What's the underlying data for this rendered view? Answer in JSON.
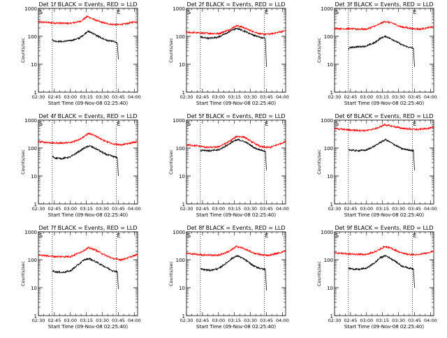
{
  "figure": {
    "start_time_label": "Start Time (09-Nov-08 02:25:40)",
    "ylabel": "Counts/sec",
    "colors": {
      "events": "#000000",
      "lld": "#ff0000"
    },
    "markers": {
      "start": "S",
      "end": "E"
    }
  },
  "chart_data": [
    {
      "type": "line",
      "title": "Det 1f BLACK = Events, RED = LLD",
      "xlabel": "Start Time (09-Nov-08 02:25:40)",
      "ylabel": "Counts/sec",
      "xticks": [
        "02:30",
        "02:45",
        "03:00",
        "03:15",
        "03:30",
        "03:45",
        "04:00"
      ],
      "yticks": [
        "1",
        "10",
        "100",
        "1000"
      ],
      "xlim": [
        "02:30",
        "04:03"
      ],
      "ylim": [
        1,
        1000
      ],
      "yscale": "log",
      "markers": {
        "S": "02:43",
        "E": "03:43"
      },
      "series": [
        {
          "color": "red",
          "x": [
            "02:30",
            "02:45",
            "03:00",
            "03:10",
            "03:16",
            "03:22",
            "03:30",
            "03:38",
            "03:45",
            "03:52",
            "04:00",
            "04:03"
          ],
          "y": [
            330,
            300,
            290,
            350,
            520,
            400,
            310,
            270,
            260,
            280,
            330,
            340
          ]
        },
        {
          "color": "black",
          "x": [
            "02:43",
            "02:45",
            "02:52",
            "03:00",
            "03:08",
            "03:12",
            "03:16",
            "03:20",
            "03:28",
            "03:35",
            "03:41",
            "03:44",
            "03:45"
          ],
          "y": [
            75,
            68,
            65,
            70,
            85,
            110,
            150,
            135,
            90,
            70,
            65,
            55,
            15
          ]
        }
      ]
    },
    {
      "type": "line",
      "title": "Det 2f BLACK = Events, RED = LLD",
      "xlabel": "Start Time (09-Nov-08 02:25:40)",
      "ylabel": "Counts/sec",
      "xticks": [
        "02:30",
        "02:45",
        "03:00",
        "03:15",
        "03:30",
        "03:45",
        "04:00"
      ],
      "yticks": [
        "1",
        "10",
        "100",
        "1000"
      ],
      "xlim": [
        "02:30",
        "04:03"
      ],
      "ylim": [
        1,
        1000
      ],
      "yscale": "log",
      "markers": {
        "S": "02:43",
        "E": "03:43"
      },
      "series": [
        {
          "color": "red",
          "x": [
            "02:30",
            "02:45",
            "03:00",
            "03:10",
            "03:17",
            "03:23",
            "03:32",
            "03:40",
            "03:48",
            "04:00",
            "04:03"
          ],
          "y": [
            140,
            130,
            125,
            170,
            240,
            210,
            150,
            120,
            120,
            150,
            160
          ]
        },
        {
          "color": "black",
          "x": [
            "02:43",
            "02:45",
            "02:52",
            "03:00",
            "03:08",
            "03:13",
            "03:18",
            "03:25",
            "03:33",
            "03:40",
            "03:44",
            "03:45"
          ],
          "y": [
            100,
            90,
            85,
            95,
            130,
            170,
            190,
            150,
            110,
            90,
            85,
            8
          ]
        }
      ]
    },
    {
      "type": "line",
      "title": "Det 3f BLACK = Events, RED = LLD",
      "xlabel": "Start Time (09-Nov-08 02:25:40)",
      "ylabel": "Counts/sec",
      "xticks": [
        "02:30",
        "02:45",
        "03:00",
        "03:15",
        "03:30",
        "03:45",
        "04:00"
      ],
      "yticks": [
        "1",
        "10",
        "100",
        "1000"
      ],
      "xlim": [
        "02:30",
        "04:03"
      ],
      "ylim": [
        1,
        1000
      ],
      "yscale": "log",
      "markers": {
        "S": "02:43",
        "E": "03:43"
      },
      "series": [
        {
          "color": "red",
          "x": [
            "02:30",
            "02:45",
            "03:00",
            "03:10",
            "03:17",
            "03:24",
            "03:32",
            "03:42",
            "03:50",
            "04:00",
            "04:03"
          ],
          "y": [
            190,
            185,
            180,
            250,
            340,
            300,
            220,
            190,
            180,
            210,
            220
          ]
        },
        {
          "color": "black",
          "x": [
            "02:43",
            "02:45",
            "02:52",
            "03:00",
            "03:08",
            "03:13",
            "03:18",
            "03:25",
            "03:33",
            "03:40",
            "03:44",
            "03:45"
          ],
          "y": [
            35,
            40,
            42,
            45,
            60,
            85,
            100,
            75,
            50,
            40,
            38,
            8
          ]
        }
      ]
    },
    {
      "type": "line",
      "title": "Det 4f BLACK = Events, RED = LLD",
      "xlabel": "Start Time (09-Nov-08 02:25:40)",
      "ylabel": "Counts/sec",
      "xticks": [
        "02:30",
        "02:45",
        "03:00",
        "03:15",
        "03:30",
        "03:45",
        "04:00"
      ],
      "yticks": [
        "1",
        "10",
        "100",
        "1000"
      ],
      "xlim": [
        "02:30",
        "04:03"
      ],
      "ylim": [
        1,
        1000
      ],
      "yscale": "log",
      "markers": {
        "S": "02:43",
        "E": "03:43"
      },
      "series": [
        {
          "color": "red",
          "x": [
            "02:30",
            "02:45",
            "03:00",
            "03:10",
            "03:17",
            "03:23",
            "03:32",
            "03:40",
            "03:48",
            "04:00",
            "04:03"
          ],
          "y": [
            170,
            150,
            155,
            220,
            330,
            280,
            180,
            140,
            130,
            160,
            170
          ]
        },
        {
          "color": "black",
          "x": [
            "02:43",
            "02:45",
            "02:52",
            "03:00",
            "03:08",
            "03:13",
            "03:18",
            "03:25",
            "03:33",
            "03:40",
            "03:44",
            "03:45"
          ],
          "y": [
            50,
            45,
            42,
            48,
            75,
            100,
            120,
            90,
            60,
            50,
            45,
            10
          ]
        }
      ]
    },
    {
      "type": "line",
      "title": "Det 5f BLACK = Events, RED = LLD",
      "xlabel": "Start Time (09-Nov-08 02:25:40)",
      "ylabel": "Counts/sec",
      "xticks": [
        "02:30",
        "02:45",
        "03:00",
        "03:15",
        "03:30",
        "03:45",
        "04:00"
      ],
      "yticks": [
        "1",
        "10",
        "100",
        "1000"
      ],
      "xlim": [
        "02:30",
        "04:03"
      ],
      "ylim": [
        1,
        1000
      ],
      "yscale": "log",
      "markers": {
        "S": "02:43",
        "E": "03:43"
      },
      "series": [
        {
          "color": "red",
          "x": [
            "02:30",
            "02:40",
            "02:50",
            "03:00",
            "03:10",
            "03:17",
            "03:24",
            "03:32",
            "03:40",
            "03:48",
            "03:55",
            "04:03"
          ],
          "y": [
            130,
            120,
            105,
            110,
            170,
            260,
            250,
            160,
            110,
            105,
            130,
            170
          ]
        },
        {
          "color": "black",
          "x": [
            "02:43",
            "02:45",
            "02:52",
            "03:00",
            "03:08",
            "03:14",
            "03:19",
            "03:26",
            "03:34",
            "03:40",
            "03:44",
            "03:45"
          ],
          "y": [
            80,
            85,
            80,
            85,
            125,
            175,
            200,
            160,
            100,
            85,
            75,
            16
          ]
        }
      ]
    },
    {
      "type": "line",
      "title": "Det 6f BLACK = Events, RED = LLD",
      "xlabel": "Start Time (09-Nov-08 02:25:40)",
      "ylabel": "Counts/sec",
      "xticks": [
        "02:30",
        "02:45",
        "03:00",
        "03:15",
        "03:30",
        "03:45",
        "04:00"
      ],
      "yticks": [
        "1",
        "10",
        "100",
        "1000"
      ],
      "xlim": [
        "02:30",
        "04:03"
      ],
      "ylim": [
        1,
        1000
      ],
      "yscale": "log",
      "markers": {
        "S": "02:43",
        "E": "03:43"
      },
      "series": [
        {
          "color": "red",
          "x": [
            "02:30",
            "02:45",
            "03:00",
            "03:10",
            "03:17",
            "03:23",
            "03:32",
            "03:40",
            "03:48",
            "04:00",
            "04:03"
          ],
          "y": [
            500,
            440,
            420,
            520,
            680,
            620,
            520,
            480,
            460,
            520,
            540
          ]
        },
        {
          "color": "black",
          "x": [
            "02:43",
            "02:45",
            "02:52",
            "03:00",
            "03:08",
            "03:13",
            "03:18",
            "03:25",
            "03:33",
            "03:40",
            "03:44",
            "03:45"
          ],
          "y": [
            90,
            85,
            80,
            85,
            120,
            160,
            200,
            140,
            95,
            85,
            80,
            16
          ]
        }
      ]
    },
    {
      "type": "line",
      "title": "Det 7f BLACK = Events, RED = LLD",
      "xlabel": "Start Time (09-Nov-08 02:25:40)",
      "ylabel": "Counts/sec",
      "xticks": [
        "02:30",
        "02:45",
        "03:00",
        "03:15",
        "03:30",
        "03:45",
        "04:00"
      ],
      "yticks": [
        "1",
        "10",
        "100",
        "1000"
      ],
      "xlim": [
        "02:30",
        "04:03"
      ],
      "ylim": [
        1,
        1000
      ],
      "yscale": "log",
      "markers": {
        "S": "02:43",
        "E": "03:43"
      },
      "series": [
        {
          "color": "red",
          "x": [
            "02:30",
            "02:45",
            "03:00",
            "03:10",
            "03:17",
            "03:23",
            "03:32",
            "03:40",
            "03:48",
            "04:00",
            "04:03"
          ],
          "y": [
            150,
            130,
            130,
            190,
            270,
            230,
            150,
            110,
            100,
            140,
            160
          ]
        },
        {
          "color": "black",
          "x": [
            "02:43",
            "02:45",
            "02:52",
            "03:00",
            "03:08",
            "03:13",
            "03:18",
            "03:25",
            "03:33",
            "03:40",
            "03:44",
            "03:45"
          ],
          "y": [
            40,
            38,
            35,
            40,
            70,
            100,
            110,
            80,
            55,
            40,
            38,
            9
          ]
        }
      ]
    },
    {
      "type": "line",
      "title": "Det 8f BLACK = Events, RED = LLD",
      "xlabel": "Start Time (09-Nov-08 02:25:40)",
      "ylabel": "Counts/sec",
      "xticks": [
        "02:30",
        "02:45",
        "03:00",
        "03:15",
        "03:30",
        "03:45",
        "04:00"
      ],
      "yticks": [
        "1",
        "10",
        "100",
        "1000"
      ],
      "xlim": [
        "02:30",
        "04:03"
      ],
      "ylim": [
        1,
        1000
      ],
      "yscale": "log",
      "markers": {
        "S": "02:43",
        "E": "03:43"
      },
      "series": [
        {
          "color": "red",
          "x": [
            "02:30",
            "02:45",
            "03:00",
            "03:10",
            "03:17",
            "03:23",
            "03:32",
            "03:40",
            "03:48",
            "04:00",
            "04:03"
          ],
          "y": [
            170,
            150,
            145,
            200,
            300,
            260,
            180,
            150,
            145,
            190,
            220
          ]
        },
        {
          "color": "black",
          "x": [
            "02:43",
            "02:45",
            "02:52",
            "03:00",
            "03:08",
            "03:13",
            "03:18",
            "03:25",
            "03:33",
            "03:40",
            "03:44",
            "03:45"
          ],
          "y": [
            48,
            45,
            42,
            48,
            80,
            115,
            140,
            100,
            60,
            48,
            45,
            8
          ]
        }
      ]
    },
    {
      "type": "line",
      "title": "Det 9f BLACK = Events, RED = LLD",
      "xlabel": "Start Time (09-Nov-08 02:25:40)",
      "ylabel": "Counts/sec",
      "xticks": [
        "02:30",
        "02:45",
        "03:00",
        "03:15",
        "03:30",
        "03:45",
        "04:00"
      ],
      "yticks": [
        "1",
        "10",
        "100",
        "1000"
      ],
      "xlim": [
        "02:30",
        "04:03"
      ],
      "ylim": [
        1,
        1000
      ],
      "yscale": "log",
      "markers": {
        "S": "02:43",
        "E": "03:43"
      },
      "series": [
        {
          "color": "red",
          "x": [
            "02:30",
            "02:45",
            "03:00",
            "03:10",
            "03:17",
            "03:23",
            "03:32",
            "03:40",
            "03:48",
            "04:00",
            "04:03"
          ],
          "y": [
            180,
            160,
            155,
            210,
            300,
            260,
            180,
            155,
            150,
            190,
            210
          ]
        },
        {
          "color": "black",
          "x": [
            "02:43",
            "02:45",
            "02:52",
            "03:00",
            "03:08",
            "03:13",
            "03:18",
            "03:25",
            "03:33",
            "03:40",
            "03:44",
            "03:45"
          ],
          "y": [
            50,
            48,
            45,
            50,
            80,
            120,
            140,
            100,
            60,
            50,
            48,
            10
          ]
        }
      ]
    }
  ]
}
